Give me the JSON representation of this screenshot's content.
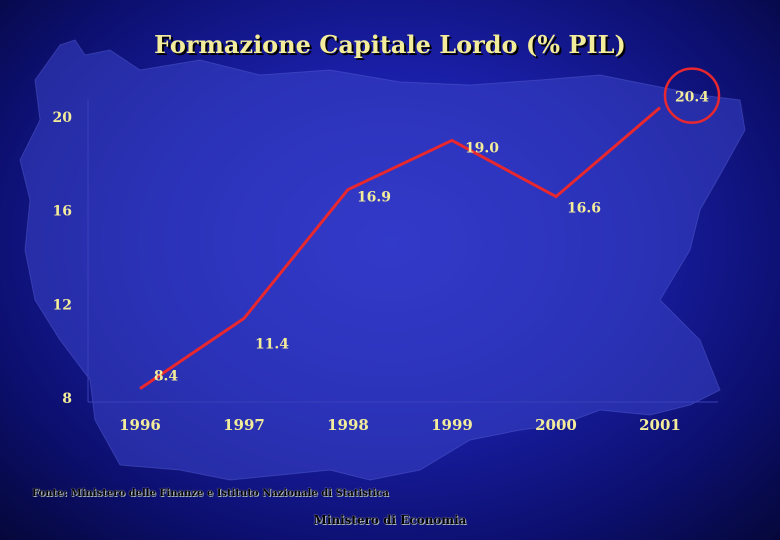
{
  "title": "Formazione Capitale Lordo (% PIL)",
  "source": "Fonte: Ministero delle Finanze e Istituto Nazionale di Statistica",
  "footer": "Ministero di Economia",
  "colors": {
    "line": "#e8282e",
    "highlight_circle": "#e8282e",
    "label_text": "#f3ec9a",
    "tick_text": "#f3ec9a"
  },
  "chart_data": {
    "type": "line",
    "title": "Formazione Capitale Lordo (% PIL)",
    "categories": [
      "1996",
      "1997",
      "1998",
      "1999",
      "2000",
      "2001"
    ],
    "series": [
      {
        "values": [
          8.4,
          11.4,
          16.9,
          19.0,
          16.6,
          20.4
        ]
      }
    ],
    "data_labels": [
      "8.4",
      "11.4",
      "16.9",
      "19.0",
      "16.6",
      "20.4"
    ],
    "yticks": [
      "8",
      "12",
      "16",
      "20"
    ],
    "ylim": [
      8,
      20.4
    ],
    "highlighted": "2001",
    "grid": false
  }
}
